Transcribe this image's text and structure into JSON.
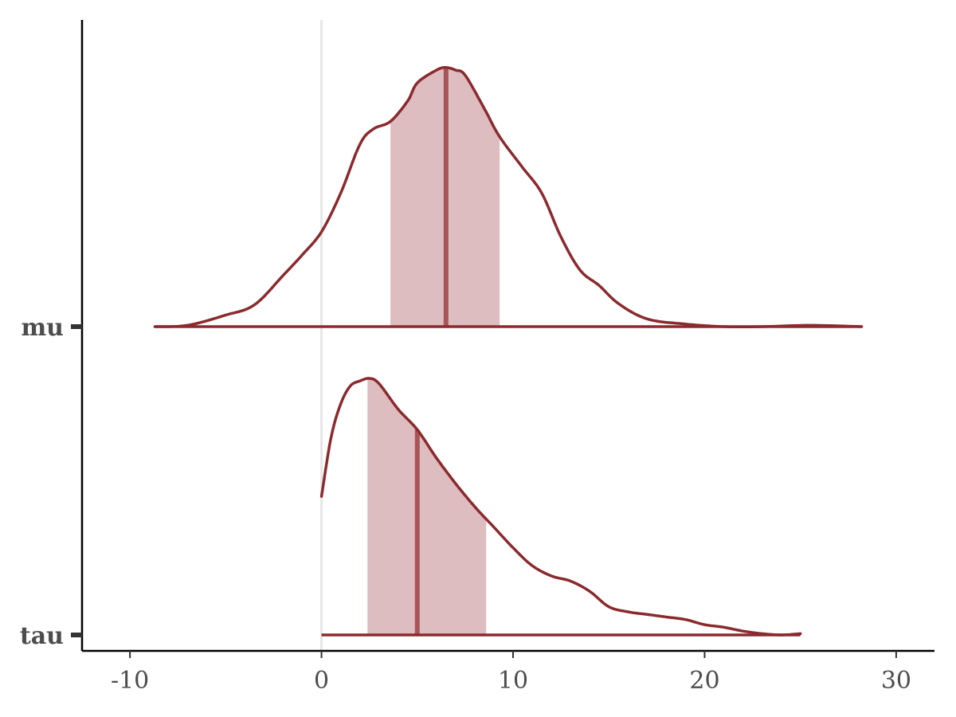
{
  "chart_data": {
    "type": "area",
    "title": "",
    "xlabel": "",
    "ylabel": "",
    "xlim": [
      -12.5,
      32
    ],
    "x_ticks": [
      -10,
      0,
      10,
      20,
      30
    ],
    "x_tick_labels": [
      "-10",
      "0",
      "10",
      "20",
      "30"
    ],
    "reference_line_x": 0,
    "grid": false,
    "legend": "none",
    "colors": {
      "line": "#8B2A2E",
      "interval_fill": "#DDBDBF",
      "median_line": "#A85557",
      "reference_line": "#E6E6E6"
    },
    "series": [
      {
        "name": "mu",
        "median": 6.5,
        "interval": [
          3.6,
          9.3
        ],
        "x": [
          -8.7,
          -7.0,
          -5.0,
          -3.5,
          -2.0,
          -1.0,
          0.0,
          1.0,
          2.0,
          2.7,
          3.6,
          4.5,
          5.0,
          6.0,
          6.5,
          7.0,
          7.5,
          8.5,
          9.3,
          10.5,
          11.5,
          12.5,
          13.5,
          14.5,
          15.5,
          17.0,
          19.0,
          21.0,
          23.0,
          25.5,
          28.2
        ],
        "density": [
          0.0,
          0.005,
          0.045,
          0.085,
          0.2,
          0.28,
          0.37,
          0.52,
          0.71,
          0.77,
          0.8,
          0.88,
          0.95,
          1.0,
          1.01,
          1.0,
          0.98,
          0.85,
          0.74,
          0.62,
          0.52,
          0.35,
          0.22,
          0.16,
          0.09,
          0.03,
          0.01,
          0.0,
          0.0,
          0.005,
          0.0
        ]
      },
      {
        "name": "tau",
        "median": 5.0,
        "interval": [
          2.4,
          8.6
        ],
        "x": [
          0.0,
          0.5,
          1.0,
          1.5,
          2.0,
          2.5,
          3.0,
          4.0,
          5.0,
          6.0,
          7.0,
          8.0,
          9.0,
          10.0,
          11.0,
          12.0,
          13.0,
          14.0,
          15.0,
          16.0,
          17.0,
          18.0,
          19.0,
          20.0,
          21.0,
          22.0,
          23.0,
          24.0,
          25.0
        ],
        "density": [
          0.54,
          0.77,
          0.9,
          0.97,
          0.99,
          1.0,
          0.98,
          0.88,
          0.8,
          0.69,
          0.59,
          0.5,
          0.42,
          0.34,
          0.27,
          0.23,
          0.21,
          0.17,
          0.11,
          0.09,
          0.08,
          0.07,
          0.06,
          0.04,
          0.03,
          0.015,
          0.005,
          0.0,
          0.005
        ]
      }
    ]
  }
}
